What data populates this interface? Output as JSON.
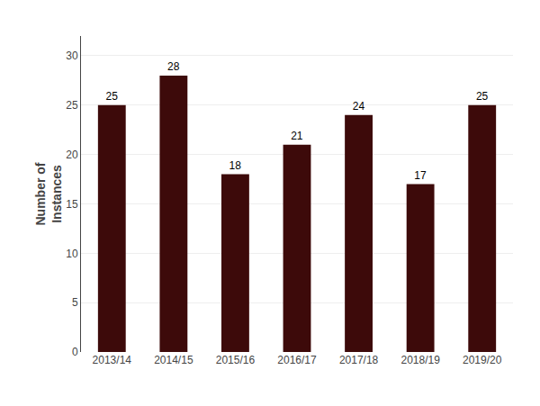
{
  "chart_data": {
    "type": "bar",
    "ylabel": "Number of\nInstances",
    "categories": [
      "2013/14",
      "2014/15",
      "2015/16",
      "2016/17",
      "2017/18",
      "2018/19",
      "2019/20"
    ],
    "values": [
      25,
      28,
      18,
      21,
      24,
      17,
      25
    ],
    "color": "#3D0A0A",
    "ylim": [
      0,
      32
    ],
    "yticks": [
      0,
      5,
      10,
      15,
      20,
      25,
      30
    ],
    "grid": true,
    "data_labels": true
  }
}
